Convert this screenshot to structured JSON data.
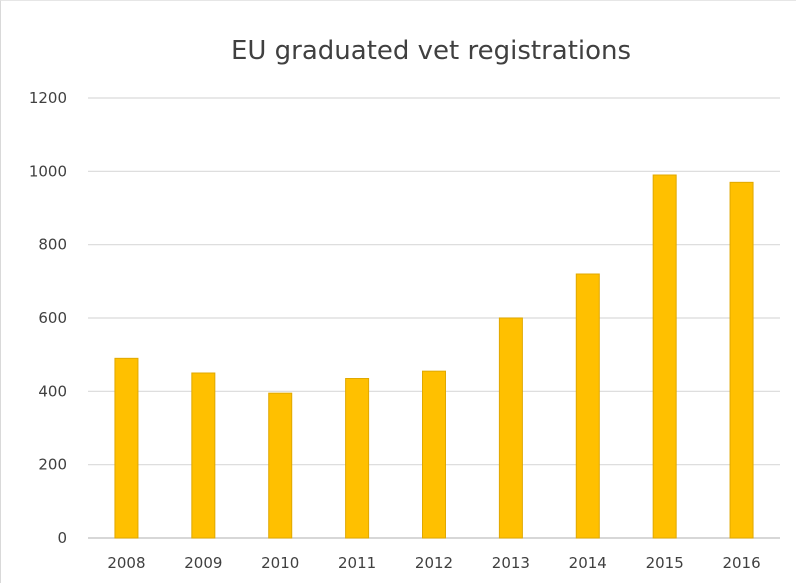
{
  "chart_data": {
    "type": "bar",
    "title": "EU graduated vet registrations",
    "xlabel": "",
    "ylabel": "",
    "categories": [
      "2008",
      "2009",
      "2010",
      "2011",
      "2012",
      "2013",
      "2014",
      "2015",
      "2016"
    ],
    "values": [
      490,
      450,
      395,
      435,
      455,
      600,
      720,
      990,
      970
    ],
    "ylim": [
      0,
      1200
    ],
    "yticks": [
      0,
      200,
      400,
      600,
      800,
      1000,
      1200
    ],
    "ytick_labels": [
      "0",
      "200",
      "400",
      "600",
      "800",
      "1000",
      "1200"
    ],
    "grid": true,
    "legend": "none",
    "colors": {
      "bar_fill": "#FFC000",
      "bar_edge": "#E0A800",
      "gridline": "#d9d9d9",
      "axis_line": "#bfbfbf",
      "text": "#404040"
    }
  }
}
